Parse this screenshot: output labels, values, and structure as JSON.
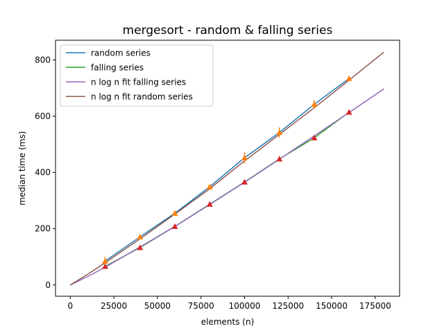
{
  "chart_data": {
    "type": "line",
    "title": "mergesort - random & falling series",
    "xlabel": "elements (n)",
    "ylabel": "median time (ms)",
    "xlim": [
      -8500,
      189000
    ],
    "ylim": [
      -40,
      870
    ],
    "xticks": [
      0,
      25000,
      50000,
      75000,
      100000,
      125000,
      150000,
      175000
    ],
    "yticks": [
      0,
      200,
      400,
      600,
      800
    ],
    "grid": false,
    "legend_position": "top-left",
    "series": [
      {
        "name": "random series",
        "kind": "measured",
        "color": "#1f77b4",
        "marker_color": "#ff7f0e",
        "marker": "triangle-up",
        "x": [
          20000,
          40000,
          60000,
          80000,
          100000,
          120000,
          140000,
          160000
        ],
        "y": [
          85,
          171,
          255,
          349,
          452,
          542,
          642,
          734
        ],
        "err": [
          15,
          8,
          6,
          8,
          20,
          18,
          15,
          8
        ]
      },
      {
        "name": "falling series",
        "kind": "measured",
        "color": "#2ca02c",
        "marker_color": "#d62728",
        "marker": "triangle-up",
        "x": [
          20000,
          40000,
          60000,
          80000,
          100000,
          120000,
          140000,
          160000
        ],
        "y": [
          66,
          133,
          208,
          287,
          366,
          448,
          523,
          614
        ],
        "err": [
          3,
          3,
          3,
          3,
          3,
          3,
          3,
          3
        ]
      },
      {
        "name": "n log n fit falling series",
        "kind": "fit",
        "color": "#9467bd",
        "x": [
          0,
          10000,
          20000,
          40000,
          60000,
          80000,
          100000,
          120000,
          140000,
          160000,
          180000
        ],
        "y": [
          0,
          30,
          63,
          135,
          208,
          286,
          365,
          447,
          530,
          613,
          697
        ]
      },
      {
        "name": "n log n fit random series",
        "kind": "fit",
        "color": "#8c564b",
        "x": [
          0,
          10000,
          20000,
          40000,
          60000,
          80000,
          100000,
          120000,
          140000,
          160000,
          180000
        ],
        "y": [
          0,
          38,
          79,
          164,
          252,
          342,
          441,
          535,
          630,
          728,
          828
        ]
      }
    ]
  }
}
